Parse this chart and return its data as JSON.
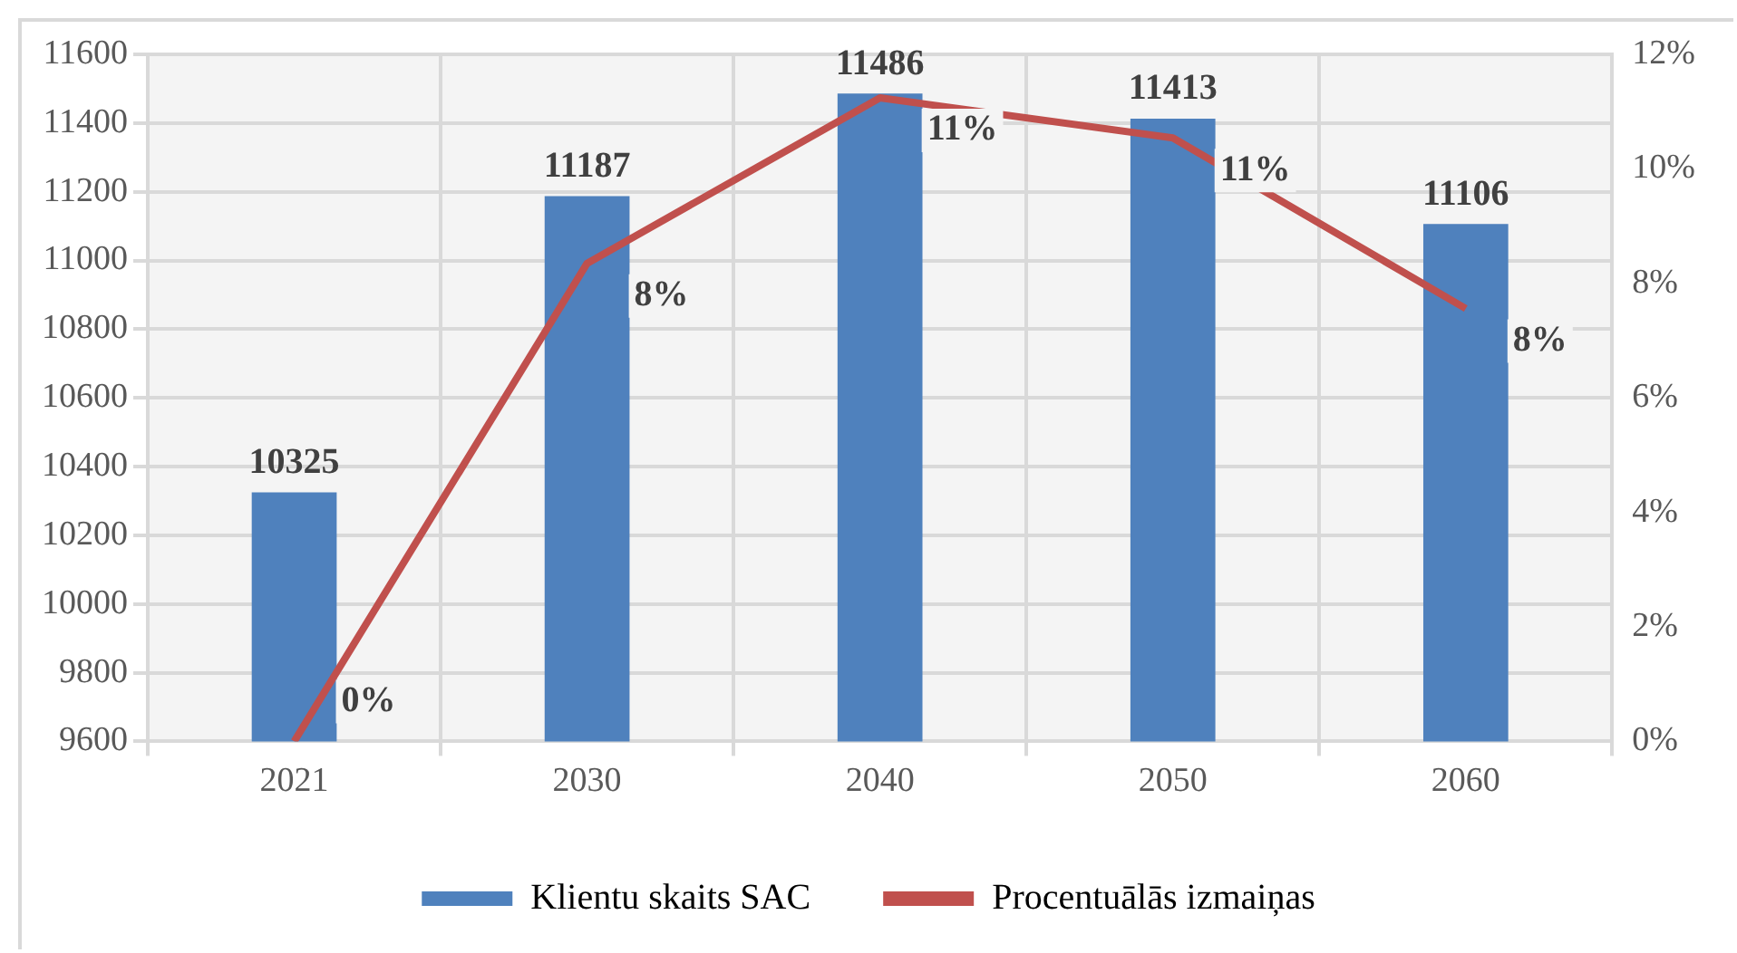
{
  "chart_data": {
    "type": "bar",
    "categories": [
      "2021",
      "2030",
      "2040",
      "2050",
      "2060"
    ],
    "series": [
      {
        "name": "Klientu skaits SAC",
        "color": "#4f81bd",
        "values": [
          10325,
          11187,
          11486,
          11413,
          11106
        ],
        "data_labels": true
      },
      {
        "name": "Procentuālās izmaiņas",
        "type": "line",
        "axis": "y2",
        "color": "#c0504d",
        "values": [
          0,
          8.35,
          11.24,
          10.54,
          7.56
        ],
        "value_labels": [
          "0%",
          "8%",
          "11%",
          "11%",
          "8%"
        ]
      }
    ],
    "ylim": [
      9600,
      11600
    ],
    "yticks": [
      9600,
      9800,
      10000,
      10200,
      10400,
      10600,
      10800,
      11000,
      11200,
      11400,
      11600
    ],
    "y2lim": [
      0,
      12
    ],
    "y2ticks": [
      {
        "value": 0,
        "label": "0%"
      },
      {
        "value": 2,
        "label": "2%"
      },
      {
        "value": 4,
        "label": "4%"
      },
      {
        "value": 6,
        "label": "6%"
      },
      {
        "value": 8,
        "label": "8%"
      },
      {
        "value": 10,
        "label": "10%"
      },
      {
        "value": 12,
        "label": "12%"
      }
    ],
    "grid": true,
    "legend": "bottom",
    "marker": "none",
    "line_style": "solid"
  }
}
